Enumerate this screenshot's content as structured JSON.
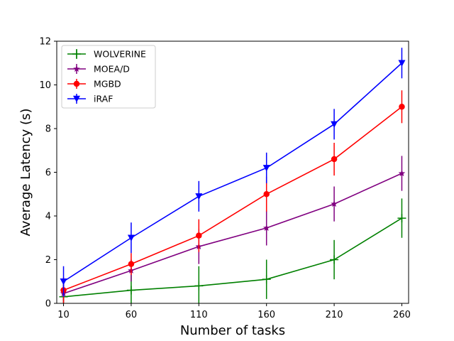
{
  "chart_data": {
    "type": "line",
    "xlabel": "Number of tasks",
    "ylabel": "Average Latency (s)",
    "x": [
      10,
      60,
      110,
      160,
      210,
      260
    ],
    "xticks": [
      "10",
      "60",
      "110",
      "160",
      "210",
      "260"
    ],
    "yticks": [
      "0",
      "2",
      "4",
      "6",
      "8",
      "10",
      "12"
    ],
    "xlim": [
      5,
      265
    ],
    "ylim": [
      0,
      12
    ],
    "grid": false,
    "legend_position": "top-left",
    "series": [
      {
        "name": "WOLVERINE",
        "color": "#008000",
        "marker": "plus",
        "values": [
          0.3,
          0.6,
          0.8,
          1.1,
          2.0,
          3.9
        ],
        "errors": [
          0.7,
          0.7,
          0.9,
          0.9,
          0.9,
          0.9
        ]
      },
      {
        "name": "MOEA/D",
        "color": "#800080",
        "marker": "star",
        "values": [
          0.45,
          1.5,
          2.6,
          3.45,
          4.55,
          5.95
        ],
        "errors": [
          0.4,
          0.5,
          0.8,
          0.8,
          0.8,
          0.8
        ]
      },
      {
        "name": "MGBD",
        "color": "#ff0000",
        "marker": "circle",
        "values": [
          0.6,
          1.8,
          3.1,
          5.0,
          6.6,
          9.0
        ],
        "errors": [
          0.6,
          0.5,
          0.75,
          0.8,
          0.75,
          0.75
        ]
      },
      {
        "name": "iRAF",
        "color": "#0000ff",
        "marker": "triangle-down",
        "values": [
          1.0,
          3.0,
          4.9,
          6.2,
          8.2,
          11.0
        ],
        "errors": [
          0.7,
          0.7,
          0.7,
          0.7,
          0.7,
          0.7
        ]
      }
    ]
  }
}
